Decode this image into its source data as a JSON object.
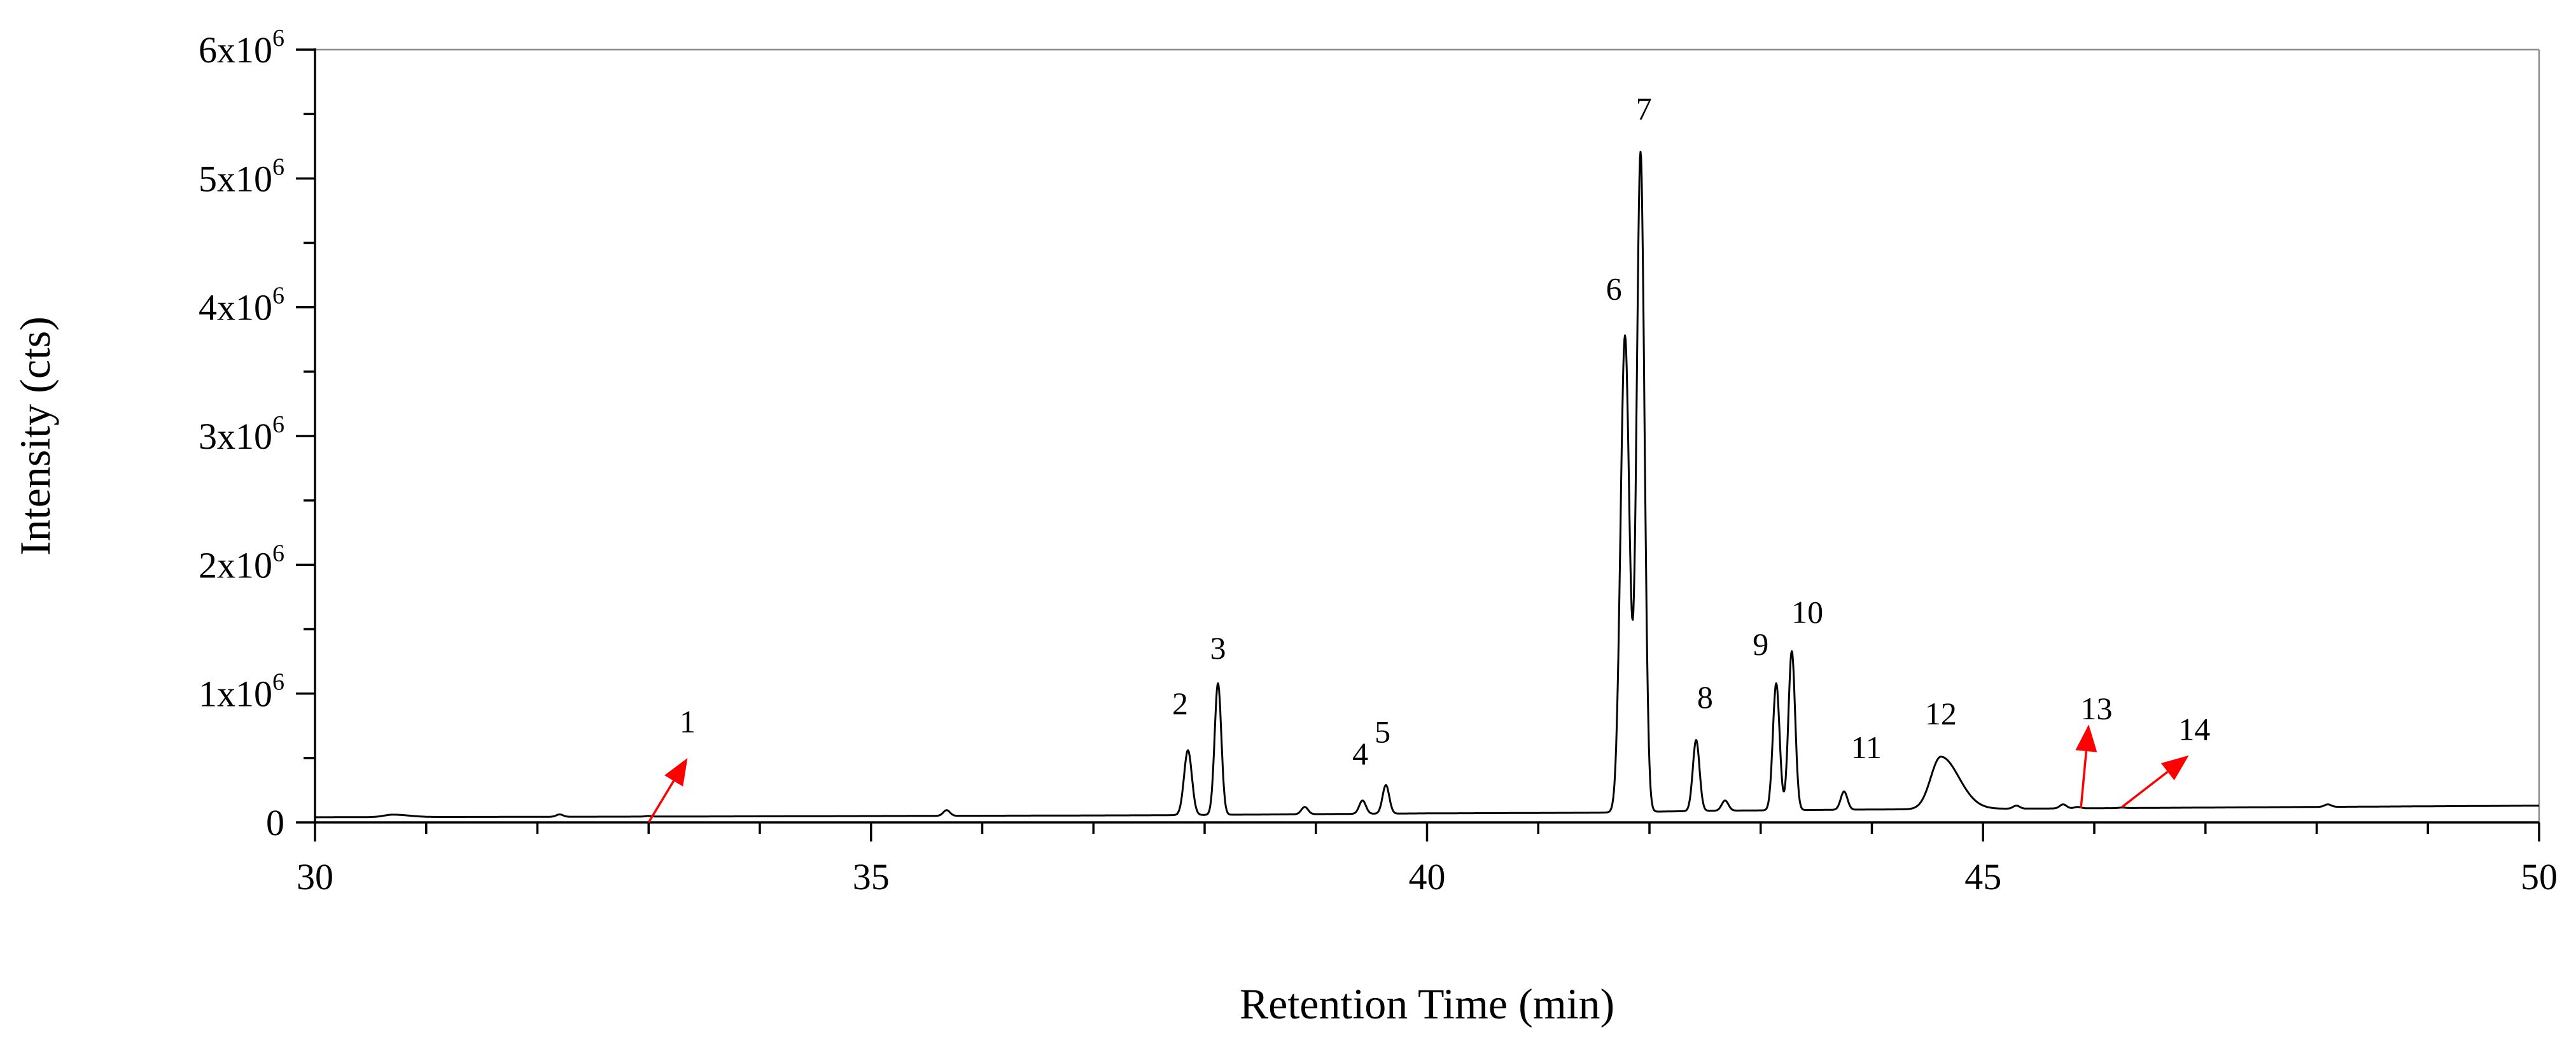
{
  "chart_data": {
    "type": "line",
    "xlabel": "Retention Time (min)",
    "ylabel": "Intensity (cts)",
    "xlim": [
      30,
      50
    ],
    "ylim": [
      0,
      6000000
    ],
    "x_major_ticks": [
      30,
      35,
      40,
      45,
      50
    ],
    "x_tick_labels": [
      "30",
      "35",
      "40",
      "45",
      "50"
    ],
    "y_major_ticks": [
      0,
      1000000,
      2000000,
      3000000,
      4000000,
      5000000,
      6000000
    ],
    "y_tick_labels": [
      {
        "mantissa": "0",
        "exp": ""
      },
      {
        "mantissa": "1x10",
        "exp": "6"
      },
      {
        "mantissa": "2x10",
        "exp": "6"
      },
      {
        "mantissa": "3x10",
        "exp": "6"
      },
      {
        "mantissa": "4x10",
        "exp": "6"
      },
      {
        "mantissa": "5x10",
        "exp": "6"
      },
      {
        "mantissa": "6x10",
        "exp": "6"
      }
    ],
    "grid": false,
    "baseline": [
      [
        30,
        40000
      ],
      [
        33,
        45000
      ],
      [
        37.5,
        55000
      ],
      [
        40,
        70000
      ],
      [
        41.5,
        75000
      ],
      [
        42.5,
        90000
      ],
      [
        44,
        100000
      ],
      [
        46,
        110000
      ],
      [
        48,
        120000
      ],
      [
        50,
        130000
      ]
    ],
    "peaks": [
      {
        "id": "1",
        "x": 33.0,
        "y": 50000,
        "w": 0.03
      },
      {
        "id": "2",
        "x": 37.85,
        "y": 560000,
        "w": 0.035
      },
      {
        "id": "3",
        "x": 38.12,
        "y": 1080000,
        "w": 0.03
      },
      {
        "id": "4",
        "x": 39.42,
        "y": 170000,
        "w": 0.03
      },
      {
        "id": "5",
        "x": 39.63,
        "y": 290000,
        "w": 0.03
      },
      {
        "id": "6",
        "x": 41.78,
        "y": 3780000,
        "w": 0.04
      },
      {
        "id": "7",
        "x": 41.92,
        "y": 5200000,
        "w": 0.035
      },
      {
        "id": "8",
        "x": 42.42,
        "y": 640000,
        "w": 0.03
      },
      {
        "id": "9",
        "x": 43.14,
        "y": 1080000,
        "w": 0.03
      },
      {
        "id": "10",
        "x": 43.28,
        "y": 1330000,
        "w": 0.03
      },
      {
        "id": "11",
        "x": 43.75,
        "y": 240000,
        "w": 0.03
      },
      {
        "id": "12",
        "x": 44.62,
        "y": 510000,
        "w": 0.09
      },
      {
        "id": "13",
        "x": 45.85,
        "y": 120000,
        "w": 0.03
      },
      {
        "id": "14",
        "x": 46.25,
        "y": 115000,
        "w": 0.03
      }
    ],
    "minor_peaks": [
      {
        "x": 30.7,
        "y": 60000,
        "w": 0.08
      },
      {
        "x": 32.2,
        "y": 62000,
        "w": 0.03
      },
      {
        "x": 35.68,
        "y": 95000,
        "w": 0.03
      },
      {
        "x": 38.9,
        "y": 120000,
        "w": 0.03
      },
      {
        "x": 42.68,
        "y": 170000,
        "w": 0.03
      },
      {
        "x": 45.3,
        "y": 130000,
        "w": 0.03
      },
      {
        "x": 45.72,
        "y": 140000,
        "w": 0.03
      },
      {
        "x": 48.1,
        "y": 140000,
        "w": 0.03
      }
    ],
    "annotations": [
      {
        "text": "1",
        "x": 33.35,
        "y": 700000,
        "arrow": {
          "from": [
            33.0,
            0
          ],
          "to": [
            33.35,
            500000
          ]
        }
      },
      {
        "text": "2",
        "x": 37.78,
        "y": 840000
      },
      {
        "text": "3",
        "x": 38.12,
        "y": 1270000
      },
      {
        "text": "4",
        "x": 39.4,
        "y": 450000
      },
      {
        "text": "5",
        "x": 39.6,
        "y": 620000
      },
      {
        "text": "6",
        "x": 41.68,
        "y": 4060000
      },
      {
        "text": "7",
        "x": 41.95,
        "y": 5460000
      },
      {
        "text": "8",
        "x": 42.5,
        "y": 890000
      },
      {
        "text": "9",
        "x": 43.0,
        "y": 1300000
      },
      {
        "text": "10",
        "x": 43.42,
        "y": 1550000
      },
      {
        "text": "11",
        "x": 43.95,
        "y": 500000
      },
      {
        "text": "12",
        "x": 44.62,
        "y": 760000
      },
      {
        "text": "13",
        "x": 46.02,
        "y": 800000,
        "arrow": {
          "from": [
            45.88,
            110000
          ],
          "to": [
            45.95,
            760000
          ]
        }
      },
      {
        "text": "14",
        "x": 46.9,
        "y": 640000,
        "arrow": {
          "from": [
            46.25,
            120000
          ],
          "to": [
            46.85,
            520000
          ]
        }
      }
    ],
    "colors": {
      "trace": "#000000",
      "arrow": "#ff0000",
      "frame": "#8a8a8a"
    }
  }
}
